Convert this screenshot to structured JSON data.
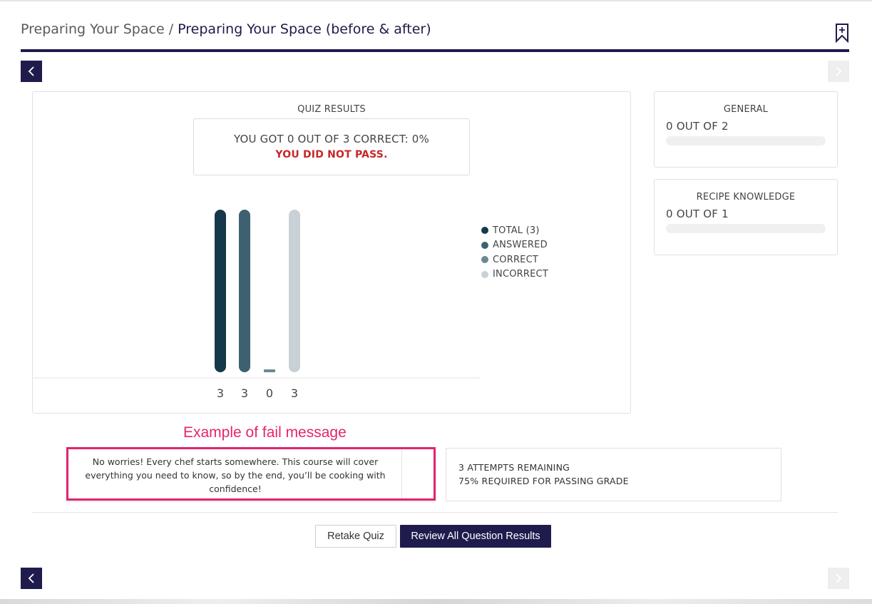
{
  "breadcrumb": {
    "parent": "Preparing Your Space",
    "separator": "/",
    "current": "Preparing Your Space (before & after)"
  },
  "icons": {
    "bookmark": "bookmark-plus-icon",
    "prev": "chevron-left-icon",
    "next": "chevron-right-icon"
  },
  "quiz": {
    "title": "QUIZ RESULTS",
    "score_text": "YOU GOT 0 OUT OF 3 CORRECT: 0%",
    "result_text": "YOU DID NOT PASS."
  },
  "chart_data": {
    "type": "bar",
    "categories": [
      "TOTAL (3)",
      "ANSWERED",
      "CORRECT",
      "INCORRECT"
    ],
    "values": [
      3,
      3,
      0,
      3
    ],
    "tick_labels": [
      "3",
      "3",
      "0",
      "3"
    ],
    "colors": [
      "#15394a",
      "#3d6170",
      "#6a8793",
      "#c9d1d6"
    ],
    "ylim": [
      0,
      3
    ],
    "legend_position": "right",
    "grid": false
  },
  "categories_panel": [
    {
      "title": "GENERAL",
      "score": "0 OUT OF 2",
      "progress": 0
    },
    {
      "title": "RECIPE KNOWLEDGE",
      "score": "0 OUT OF 1",
      "progress": 0
    }
  ],
  "annotation": "Example of fail message",
  "fail_message": "No worries! Every chef starts somewhere. This course will cover everything you need to know, so by the end, you’ll be cooking with confidence!",
  "attempts": {
    "remaining": "3 ATTEMPTS REMAINING",
    "required": "75% REQUIRED FOR PASSING GRADE"
  },
  "buttons": {
    "retake": "Retake Quiz",
    "review": "Review All Question Results"
  },
  "colors": {
    "brand_navy": "#1f1c4d",
    "fail_red": "#c62828",
    "annotation_pink": "#e6246e"
  }
}
